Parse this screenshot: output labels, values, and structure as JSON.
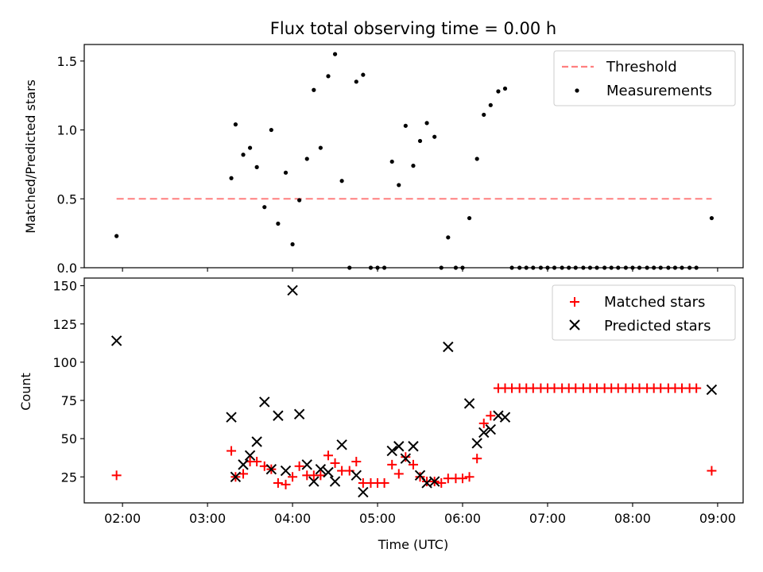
{
  "chart_data": [
    {
      "type": "scatter",
      "title": "Flux total observing time = 0.00 h",
      "xlabel": "",
      "ylabel": "Matched/Predicted stars",
      "ylim": [
        0,
        1.62
      ],
      "xlim_hours": [
        1.55,
        9.3
      ],
      "xticks": [
        {
          "v": 2,
          "label": "02:00"
        },
        {
          "v": 3,
          "label": "03:00"
        },
        {
          "v": 4,
          "label": "04:00"
        },
        {
          "v": 5,
          "label": "05:00"
        },
        {
          "v": 6,
          "label": "06:00"
        },
        {
          "v": 7,
          "label": "07:00"
        },
        {
          "v": 8,
          "label": "08:00"
        },
        {
          "v": 9,
          "label": "09:00"
        }
      ],
      "yticks": [
        {
          "v": 0,
          "label": "0.0"
        },
        {
          "v": 0.5,
          "label": "0.5"
        },
        {
          "v": 1.0,
          "label": "1.0"
        },
        {
          "v": 1.5,
          "label": "1.5"
        }
      ],
      "show_xtick_labels": false,
      "grid": false,
      "legend_position": "top-right",
      "series": [
        {
          "name": "Threshold",
          "kind": "line",
          "color": "#ff7f7f",
          "style": "dashed",
          "points": [
            [
              1.93,
              0.5
            ],
            [
              8.93,
              0.5
            ]
          ]
        },
        {
          "name": "Measurements",
          "kind": "points",
          "color": "#000000",
          "marker": "dot",
          "points": [
            [
              1.93,
              0.23
            ],
            [
              3.28,
              0.65
            ],
            [
              3.33,
              1.04
            ],
            [
              3.42,
              0.82
            ],
            [
              3.5,
              0.87
            ],
            [
              3.58,
              0.73
            ],
            [
              3.67,
              0.44
            ],
            [
              3.75,
              1.0
            ],
            [
              3.83,
              0.32
            ],
            [
              3.92,
              0.69
            ],
            [
              4.0,
              0.17
            ],
            [
              4.08,
              0.49
            ],
            [
              4.17,
              0.79
            ],
            [
              4.25,
              1.29
            ],
            [
              4.33,
              0.87
            ],
            [
              4.42,
              1.39
            ],
            [
              4.5,
              1.55
            ],
            [
              4.58,
              0.63
            ],
            [
              4.67,
              0.0
            ],
            [
              4.75,
              1.35
            ],
            [
              4.83,
              1.4
            ],
            [
              4.92,
              0.0
            ],
            [
              5.0,
              0.0
            ],
            [
              5.08,
              0.0
            ],
            [
              5.17,
              0.77
            ],
            [
              5.25,
              0.6
            ],
            [
              5.33,
              1.03
            ],
            [
              5.42,
              0.74
            ],
            [
              5.5,
              0.92
            ],
            [
              5.58,
              1.05
            ],
            [
              5.67,
              0.95
            ],
            [
              5.75,
              0.0
            ],
            [
              5.83,
              0.22
            ],
            [
              5.92,
              0.0
            ],
            [
              6.0,
              0.0
            ],
            [
              6.08,
              0.36
            ],
            [
              6.17,
              0.79
            ],
            [
              6.25,
              1.11
            ],
            [
              6.33,
              1.18
            ],
            [
              6.42,
              1.28
            ],
            [
              6.5,
              1.3
            ],
            [
              6.58,
              0.0
            ],
            [
              6.67,
              0.0
            ],
            [
              6.75,
              0.0
            ],
            [
              6.83,
              0.0
            ],
            [
              6.92,
              0.0
            ],
            [
              7.0,
              0.0
            ],
            [
              7.08,
              0.0
            ],
            [
              7.17,
              0.0
            ],
            [
              7.25,
              0.0
            ],
            [
              7.33,
              0.0
            ],
            [
              7.42,
              0.0
            ],
            [
              7.5,
              0.0
            ],
            [
              7.58,
              0.0
            ],
            [
              7.67,
              0.0
            ],
            [
              7.75,
              0.0
            ],
            [
              7.83,
              0.0
            ],
            [
              7.92,
              0.0
            ],
            [
              8.0,
              0.0
            ],
            [
              8.08,
              0.0
            ],
            [
              8.17,
              0.0
            ],
            [
              8.25,
              0.0
            ],
            [
              8.33,
              0.0
            ],
            [
              8.42,
              0.0
            ],
            [
              8.5,
              0.0
            ],
            [
              8.58,
              0.0
            ],
            [
              8.67,
              0.0
            ],
            [
              8.75,
              0.0
            ],
            [
              8.93,
              0.36
            ]
          ]
        }
      ]
    },
    {
      "type": "scatter",
      "title": "",
      "xlabel": "Time (UTC)",
      "ylabel": "Count",
      "ylim": [
        8,
        155
      ],
      "xlim_hours": [
        1.55,
        9.3
      ],
      "xticks": [
        {
          "v": 2,
          "label": "02:00"
        },
        {
          "v": 3,
          "label": "03:00"
        },
        {
          "v": 4,
          "label": "04:00"
        },
        {
          "v": 5,
          "label": "05:00"
        },
        {
          "v": 6,
          "label": "06:00"
        },
        {
          "v": 7,
          "label": "07:00"
        },
        {
          "v": 8,
          "label": "08:00"
        },
        {
          "v": 9,
          "label": "09:00"
        }
      ],
      "yticks": [
        {
          "v": 25,
          "label": "25"
        },
        {
          "v": 50,
          "label": "50"
        },
        {
          "v": 75,
          "label": "75"
        },
        {
          "v": 100,
          "label": "100"
        },
        {
          "v": 125,
          "label": "125"
        },
        {
          "v": 150,
          "label": "150"
        }
      ],
      "show_xtick_labels": true,
      "grid": false,
      "legend_position": "top-right",
      "series": [
        {
          "name": "Matched stars",
          "kind": "points",
          "color": "#ff0000",
          "marker": "plus",
          "points": [
            [
              1.93,
              26
            ],
            [
              3.28,
              42
            ],
            [
              3.33,
              25
            ],
            [
              3.42,
              27
            ],
            [
              3.5,
              35
            ],
            [
              3.58,
              35
            ],
            [
              3.67,
              32
            ],
            [
              3.75,
              30
            ],
            [
              3.83,
              21
            ],
            [
              3.92,
              20
            ],
            [
              4.0,
              25
            ],
            [
              4.08,
              32
            ],
            [
              4.17,
              26
            ],
            [
              4.25,
              26
            ],
            [
              4.33,
              26
            ],
            [
              4.42,
              39
            ],
            [
              4.5,
              34
            ],
            [
              4.58,
              29
            ],
            [
              4.67,
              29
            ],
            [
              4.75,
              35
            ],
            [
              4.83,
              21
            ],
            [
              4.92,
              21
            ],
            [
              5.0,
              21
            ],
            [
              5.08,
              21
            ],
            [
              5.17,
              33
            ],
            [
              5.25,
              27
            ],
            [
              5.33,
              38
            ],
            [
              5.42,
              33
            ],
            [
              5.5,
              25
            ],
            [
              5.58,
              22
            ],
            [
              5.67,
              22
            ],
            [
              5.75,
              21
            ],
            [
              5.83,
              24
            ],
            [
              5.92,
              24
            ],
            [
              6.0,
              24
            ],
            [
              6.08,
              25
            ],
            [
              6.17,
              37
            ],
            [
              6.25,
              60
            ],
            [
              6.33,
              65
            ],
            [
              6.42,
              83
            ],
            [
              6.5,
              83
            ],
            [
              6.58,
              83
            ],
            [
              6.67,
              83
            ],
            [
              6.75,
              83
            ],
            [
              6.83,
              83
            ],
            [
              6.92,
              83
            ],
            [
              7.0,
              83
            ],
            [
              7.08,
              83
            ],
            [
              7.17,
              83
            ],
            [
              7.25,
              83
            ],
            [
              7.33,
              83
            ],
            [
              7.42,
              83
            ],
            [
              7.5,
              83
            ],
            [
              7.58,
              83
            ],
            [
              7.67,
              83
            ],
            [
              7.75,
              83
            ],
            [
              7.83,
              83
            ],
            [
              7.92,
              83
            ],
            [
              8.0,
              83
            ],
            [
              8.08,
              83
            ],
            [
              8.17,
              83
            ],
            [
              8.25,
              83
            ],
            [
              8.33,
              83
            ],
            [
              8.42,
              83
            ],
            [
              8.5,
              83
            ],
            [
              8.58,
              83
            ],
            [
              8.67,
              83
            ],
            [
              8.75,
              83
            ],
            [
              8.93,
              29
            ]
          ]
        },
        {
          "name": "Predicted stars",
          "kind": "points",
          "color": "#000000",
          "marker": "x",
          "points": [
            [
              1.93,
              114
            ],
            [
              3.28,
              64
            ],
            [
              3.33,
              25
            ],
            [
              3.42,
              33
            ],
            [
              3.5,
              39
            ],
            [
              3.58,
              48
            ],
            [
              3.67,
              74
            ],
            [
              3.75,
              30
            ],
            [
              3.83,
              65
            ],
            [
              3.92,
              29
            ],
            [
              4.0,
              147
            ],
            [
              4.08,
              66
            ],
            [
              4.17,
              33
            ],
            [
              4.25,
              22
            ],
            [
              4.33,
              30
            ],
            [
              4.42,
              28
            ],
            [
              4.5,
              22
            ],
            [
              4.58,
              46
            ],
            [
              4.75,
              26
            ],
            [
              4.83,
              15
            ],
            [
              5.17,
              42
            ],
            [
              5.25,
              45
            ],
            [
              5.33,
              37
            ],
            [
              5.42,
              45
            ],
            [
              5.5,
              26
            ],
            [
              5.58,
              21
            ],
            [
              5.67,
              22
            ],
            [
              5.83,
              110
            ],
            [
              6.08,
              73
            ],
            [
              6.17,
              47
            ],
            [
              6.25,
              54
            ],
            [
              6.33,
              56
            ],
            [
              6.42,
              65
            ],
            [
              6.5,
              64
            ],
            [
              8.93,
              82
            ]
          ]
        }
      ]
    }
  ]
}
